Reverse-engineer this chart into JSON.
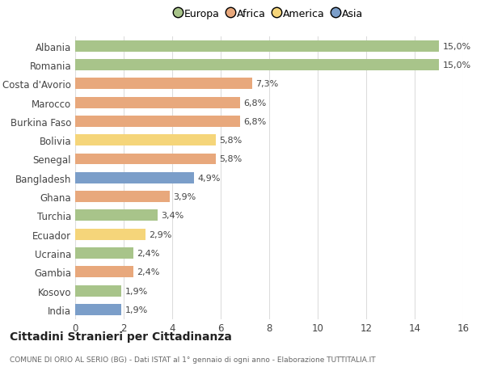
{
  "categories": [
    "India",
    "Kosovo",
    "Gambia",
    "Ucraina",
    "Ecuador",
    "Turchia",
    "Ghana",
    "Bangladesh",
    "Senegal",
    "Bolivia",
    "Burkina Faso",
    "Marocco",
    "Costa d'Avorio",
    "Romania",
    "Albania"
  ],
  "values": [
    1.9,
    1.9,
    2.4,
    2.4,
    2.9,
    3.4,
    3.9,
    4.9,
    5.8,
    5.8,
    6.8,
    6.8,
    7.3,
    15.0,
    15.0
  ],
  "labels": [
    "1,9%",
    "1,9%",
    "2,4%",
    "2,4%",
    "2,9%",
    "3,4%",
    "3,9%",
    "4,9%",
    "5,8%",
    "5,8%",
    "6,8%",
    "6,8%",
    "7,3%",
    "15,0%",
    "15,0%"
  ],
  "continents": [
    "Asia",
    "Europa",
    "Africa",
    "Europa",
    "America",
    "Europa",
    "Africa",
    "Asia",
    "Africa",
    "America",
    "Africa",
    "Africa",
    "Africa",
    "Europa",
    "Europa"
  ],
  "colors": {
    "Europa": "#a8c48a",
    "Africa": "#e8a87c",
    "America": "#f5d57a",
    "Asia": "#7b9ec9"
  },
  "legend_labels": [
    "Europa",
    "Africa",
    "America",
    "Asia"
  ],
  "title": "Cittadini Stranieri per Cittadinanza",
  "subtitle": "COMUNE DI ORIO AL SERIO (BG) - Dati ISTAT al 1° gennaio di ogni anno - Elaborazione TUTTITALIA.IT",
  "xlim": [
    0,
    16
  ],
  "xticks": [
    0,
    2,
    4,
    6,
    8,
    10,
    12,
    14,
    16
  ],
  "background_color": "#ffffff",
  "bar_height": 0.6
}
